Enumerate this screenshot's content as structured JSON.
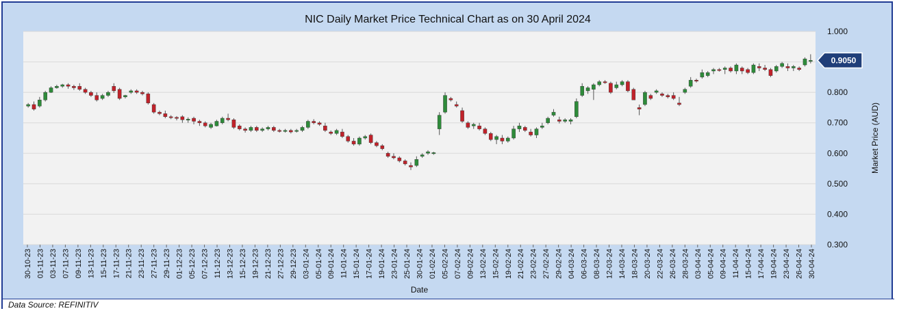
{
  "chart_data": {
    "type": "candlestick",
    "title": "NIC Daily Market Price Technical Chart as on 30 April 2024",
    "xlabel": "Date",
    "ylabel": "Market Price (AUD)",
    "ylim": [
      0.3,
      1.0
    ],
    "y_ticks": [
      "1.000",
      "0.900",
      "0.800",
      "0.700",
      "0.600",
      "0.500",
      "0.400",
      "0.300"
    ],
    "x_tick_labels": [
      "30-10-23",
      "01-11-23",
      "03-11-23",
      "07-11-23",
      "09-11-23",
      "13-11-23",
      "15-11-23",
      "17-11-23",
      "21-11-23",
      "23-11-23",
      "27-11-23",
      "29-11-23",
      "01-12-23",
      "05-12-23",
      "07-12-23",
      "11-12-23",
      "13-12-23",
      "15-12-23",
      "19-12-23",
      "21-12-23",
      "27-12-23",
      "29-12-23",
      "03-01-24",
      "05-01-24",
      "09-01-24",
      "11-01-24",
      "15-01-24",
      "17-01-24",
      "19-01-24",
      "23-01-24",
      "25-01-24",
      "30-01-24",
      "01-02-24",
      "05-02-24",
      "07-02-24",
      "09-02-24",
      "13-02-24",
      "15-02-24",
      "19-02-24",
      "21-02-24",
      "23-02-24",
      "27-02-24",
      "29-02-24",
      "04-03-24",
      "06-03-24",
      "08-03-24",
      "12-03-24",
      "14-03-24",
      "18-03-24",
      "20-03-24",
      "22-03-24",
      "26-03-24",
      "28-03-24",
      "03-04-24",
      "05-04-24",
      "09-04-24",
      "11-04-24",
      "15-04-24",
      "17-04-24",
      "19-04-24",
      "23-04-24",
      "26-04-24",
      "30-04-24"
    ],
    "grid": true,
    "up_color": "#2e8b3a",
    "down_color": "#c0222a",
    "last_price_label": "0.9050",
    "badge_color": "#1f3e79",
    "candles": [
      [
        0.755,
        0.765,
        0.75,
        0.76
      ],
      [
        0.76,
        0.77,
        0.74,
        0.745
      ],
      [
        0.755,
        0.785,
        0.75,
        0.775
      ],
      [
        0.775,
        0.805,
        0.77,
        0.8
      ],
      [
        0.8,
        0.82,
        0.798,
        0.815
      ],
      [
        0.815,
        0.825,
        0.812,
        0.82
      ],
      [
        0.82,
        0.828,
        0.815,
        0.825
      ],
      [
        0.825,
        0.83,
        0.812,
        0.82
      ],
      [
        0.82,
        0.825,
        0.808,
        0.815
      ],
      [
        0.82,
        0.83,
        0.805,
        0.81
      ],
      [
        0.81,
        0.815,
        0.795,
        0.8
      ],
      [
        0.8,
        0.805,
        0.785,
        0.79
      ],
      [
        0.79,
        0.8,
        0.77,
        0.775
      ],
      [
        0.78,
        0.795,
        0.775,
        0.79
      ],
      [
        0.79,
        0.805,
        0.785,
        0.8
      ],
      [
        0.82,
        0.83,
        0.798,
        0.805
      ],
      [
        0.81,
        0.815,
        0.775,
        0.78
      ],
      [
        0.785,
        0.792,
        0.78,
        0.79
      ],
      [
        0.8,
        0.81,
        0.795,
        0.805
      ],
      [
        0.805,
        0.81,
        0.795,
        0.8
      ],
      [
        0.8,
        0.805,
        0.79,
        0.795
      ],
      [
        0.795,
        0.8,
        0.76,
        0.765
      ],
      [
        0.76,
        0.765,
        0.73,
        0.735
      ],
      [
        0.735,
        0.74,
        0.725,
        0.73
      ],
      [
        0.73,
        0.74,
        0.715,
        0.72
      ],
      [
        0.72,
        0.725,
        0.712,
        0.718
      ],
      [
        0.718,
        0.722,
        0.708,
        0.715
      ],
      [
        0.72,
        0.725,
        0.7,
        0.71
      ],
      [
        0.71,
        0.718,
        0.7,
        0.712
      ],
      [
        0.715,
        0.72,
        0.695,
        0.705
      ],
      [
        0.705,
        0.71,
        0.69,
        0.7
      ],
      [
        0.7,
        0.705,
        0.685,
        0.69
      ],
      [
        0.685,
        0.7,
        0.68,
        0.695
      ],
      [
        0.69,
        0.71,
        0.688,
        0.705
      ],
      [
        0.7,
        0.72,
        0.695,
        0.715
      ],
      [
        0.715,
        0.73,
        0.705,
        0.71
      ],
      [
        0.71,
        0.715,
        0.68,
        0.685
      ],
      [
        0.69,
        0.695,
        0.675,
        0.68
      ],
      [
        0.68,
        0.685,
        0.668,
        0.675
      ],
      [
        0.675,
        0.69,
        0.67,
        0.685
      ],
      [
        0.685,
        0.69,
        0.67,
        0.675
      ],
      [
        0.675,
        0.685,
        0.67,
        0.68
      ],
      [
        0.68,
        0.69,
        0.675,
        0.685
      ],
      [
        0.685,
        0.69,
        0.67,
        0.675
      ],
      [
        0.675,
        0.68,
        0.668,
        0.672
      ],
      [
        0.672,
        0.68,
        0.668,
        0.675
      ],
      [
        0.675,
        0.68,
        0.665,
        0.67
      ],
      [
        0.672,
        0.68,
        0.668,
        0.675
      ],
      [
        0.675,
        0.69,
        0.67,
        0.685
      ],
      [
        0.685,
        0.71,
        0.68,
        0.705
      ],
      [
        0.705,
        0.712,
        0.695,
        0.7
      ],
      [
        0.7,
        0.705,
        0.69,
        0.695
      ],
      [
        0.69,
        0.7,
        0.67,
        0.675
      ],
      [
        0.67,
        0.675,
        0.66,
        0.665
      ],
      [
        0.665,
        0.68,
        0.66,
        0.675
      ],
      [
        0.67,
        0.68,
        0.65,
        0.655
      ],
      [
        0.655,
        0.66,
        0.635,
        0.64
      ],
      [
        0.64,
        0.65,
        0.625,
        0.63
      ],
      [
        0.63,
        0.655,
        0.625,
        0.65
      ],
      [
        0.65,
        0.66,
        0.645,
        0.655
      ],
      [
        0.66,
        0.665,
        0.63,
        0.635
      ],
      [
        0.635,
        0.64,
        0.62,
        0.625
      ],
      [
        0.625,
        0.63,
        0.61,
        0.615
      ],
      [
        0.6,
        0.605,
        0.585,
        0.59
      ],
      [
        0.59,
        0.6,
        0.58,
        0.585
      ],
      [
        0.585,
        0.59,
        0.57,
        0.575
      ],
      [
        0.575,
        0.58,
        0.56,
        0.565
      ],
      [
        0.56,
        0.57,
        0.545,
        0.555
      ],
      [
        0.56,
        0.59,
        0.555,
        0.58
      ],
      [
        0.59,
        0.6,
        0.585,
        0.595
      ],
      [
        0.6,
        0.61,
        0.595,
        0.605
      ],
      [
        0.6,
        0.605,
        0.595,
        0.602
      ],
      [
        0.68,
        0.735,
        0.66,
        0.725
      ],
      [
        0.735,
        0.8,
        0.73,
        0.79
      ],
      [
        0.78,
        0.785,
        0.77,
        0.775
      ],
      [
        0.76,
        0.77,
        0.75,
        0.755
      ],
      [
        0.74,
        0.75,
        0.7,
        0.705
      ],
      [
        0.7,
        0.705,
        0.68,
        0.685
      ],
      [
        0.69,
        0.7,
        0.68,
        0.695
      ],
      [
        0.69,
        0.7,
        0.675,
        0.68
      ],
      [
        0.68,
        0.685,
        0.66,
        0.665
      ],
      [
        0.665,
        0.67,
        0.64,
        0.645
      ],
      [
        0.645,
        0.66,
        0.63,
        0.655
      ],
      [
        0.65,
        0.66,
        0.63,
        0.64
      ],
      [
        0.64,
        0.655,
        0.635,
        0.65
      ],
      [
        0.65,
        0.69,
        0.645,
        0.68
      ],
      [
        0.68,
        0.7,
        0.67,
        0.69
      ],
      [
        0.685,
        0.69,
        0.67,
        0.675
      ],
      [
        0.67,
        0.68,
        0.655,
        0.66
      ],
      [
        0.66,
        0.685,
        0.65,
        0.68
      ],
      [
        0.685,
        0.7,
        0.68,
        0.69
      ],
      [
        0.7,
        0.72,
        0.695,
        0.715
      ],
      [
        0.725,
        0.745,
        0.72,
        0.735
      ],
      [
        0.71,
        0.72,
        0.698,
        0.705
      ],
      [
        0.705,
        0.715,
        0.7,
        0.71
      ],
      [
        0.705,
        0.715,
        0.695,
        0.71
      ],
      [
        0.72,
        0.78,
        0.715,
        0.77
      ],
      [
        0.79,
        0.83,
        0.785,
        0.82
      ],
      [
        0.805,
        0.82,
        0.795,
        0.815
      ],
      [
        0.81,
        0.83,
        0.775,
        0.825
      ],
      [
        0.825,
        0.84,
        0.82,
        0.835
      ],
      [
        0.835,
        0.84,
        0.828,
        0.832
      ],
      [
        0.83,
        0.835,
        0.795,
        0.8
      ],
      [
        0.815,
        0.835,
        0.81,
        0.825
      ],
      [
        0.825,
        0.84,
        0.82,
        0.835
      ],
      [
        0.835,
        0.84,
        0.8,
        0.805
      ],
      [
        0.81,
        0.815,
        0.78,
        0.775
      ],
      [
        0.75,
        0.76,
        0.725,
        0.745
      ],
      [
        0.76,
        0.805,
        0.755,
        0.8
      ],
      [
        0.79,
        0.795,
        0.775,
        0.78
      ],
      [
        0.8,
        0.81,
        0.795,
        0.805
      ],
      [
        0.795,
        0.8,
        0.785,
        0.79
      ],
      [
        0.79,
        0.795,
        0.78,
        0.785
      ],
      [
        0.79,
        0.8,
        0.775,
        0.78
      ],
      [
        0.765,
        0.785,
        0.755,
        0.76
      ],
      [
        0.8,
        0.815,
        0.795,
        0.81
      ],
      [
        0.82,
        0.85,
        0.815,
        0.84
      ],
      [
        0.84,
        0.845,
        0.832,
        0.838
      ],
      [
        0.85,
        0.875,
        0.845,
        0.865
      ],
      [
        0.855,
        0.87,
        0.85,
        0.865
      ],
      [
        0.87,
        0.88,
        0.86,
        0.875
      ],
      [
        0.875,
        0.88,
        0.868,
        0.872
      ],
      [
        0.875,
        0.885,
        0.86,
        0.88
      ],
      [
        0.88,
        0.885,
        0.865,
        0.87
      ],
      [
        0.87,
        0.895,
        0.86,
        0.89
      ],
      [
        0.88,
        0.885,
        0.86,
        0.87
      ],
      [
        0.875,
        0.88,
        0.86,
        0.865
      ],
      [
        0.865,
        0.895,
        0.86,
        0.89
      ],
      [
        0.885,
        0.895,
        0.87,
        0.88
      ],
      [
        0.88,
        0.89,
        0.87,
        0.875
      ],
      [
        0.875,
        0.88,
        0.85,
        0.855
      ],
      [
        0.87,
        0.89,
        0.865,
        0.885
      ],
      [
        0.885,
        0.9,
        0.88,
        0.895
      ],
      [
        0.885,
        0.895,
        0.87,
        0.88
      ],
      [
        0.88,
        0.89,
        0.87,
        0.885
      ],
      [
        0.88,
        0.885,
        0.87,
        0.875
      ],
      [
        0.89,
        0.915,
        0.885,
        0.91
      ],
      [
        0.905,
        0.925,
        0.895,
        0.905
      ]
    ]
  },
  "footer": {
    "source_text": "Data Source: REFINITIV"
  }
}
